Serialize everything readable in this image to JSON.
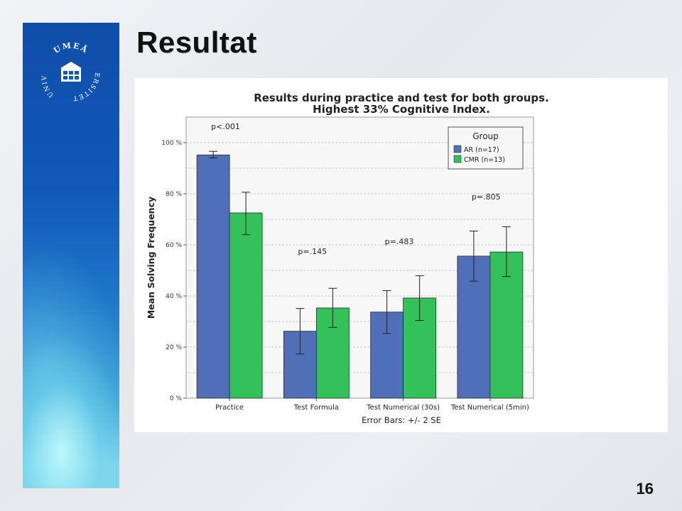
{
  "slide": {
    "title": "Resultat",
    "page_number": "16"
  },
  "logo": {
    "text_top": "UMEÅ",
    "text_left": "UNIV",
    "text_right": "ERSITET"
  },
  "colors": {
    "band": "#1158b8",
    "series_ar": "#4f6fb8",
    "series_cmr": "#33c25a",
    "grid": "#bdbdbd"
  },
  "chart_data": {
    "type": "bar",
    "title_lines": [
      "Results during practice and test for both groups.",
      "Highest 33% Cognitive Index."
    ],
    "ylabel": "Mean Solving Frequency",
    "xlabel": "Error Bars: +/- 2 SE",
    "ylim": [
      0,
      110
    ],
    "yticks": [
      0,
      20,
      40,
      60,
      80,
      100
    ],
    "ytick_labels": [
      "0 %",
      "20 %",
      "40 %",
      "60 %",
      "80 %",
      "100 %"
    ],
    "grid": true,
    "categories": [
      "Practice",
      "Test Formula",
      "Test Numerical (30s)",
      "Test Numerical (5min)"
    ],
    "series": [
      {
        "name": "AR (n=17)",
        "color": "#4f6fb8",
        "values": [
          95.2,
          26.2,
          33.7,
          55.6
        ],
        "err_low": [
          94.0,
          17.3,
          25.3,
          45.8
        ],
        "err_high": [
          96.6,
          35.1,
          42.1,
          65.4
        ]
      },
      {
        "name": "CMR (n=13)",
        "color": "#33c25a",
        "values": [
          72.5,
          35.3,
          39.2,
          57.2
        ],
        "err_low": [
          64.0,
          27.7,
          30.4,
          47.6
        ],
        "err_high": [
          80.6,
          43.0,
          47.9,
          67.1
        ]
      }
    ],
    "legend": {
      "title": "Group",
      "position": "top-right"
    },
    "annotations": [
      {
        "text": "p<.001",
        "category": 0,
        "y": 105.3
      },
      {
        "text": "p=.145",
        "category": 1,
        "y": 56.4
      },
      {
        "text": "p=.483",
        "category": 2,
        "y": 60.3
      },
      {
        "text": "p=.805",
        "category": 3,
        "y": 77.8
      }
    ]
  }
}
